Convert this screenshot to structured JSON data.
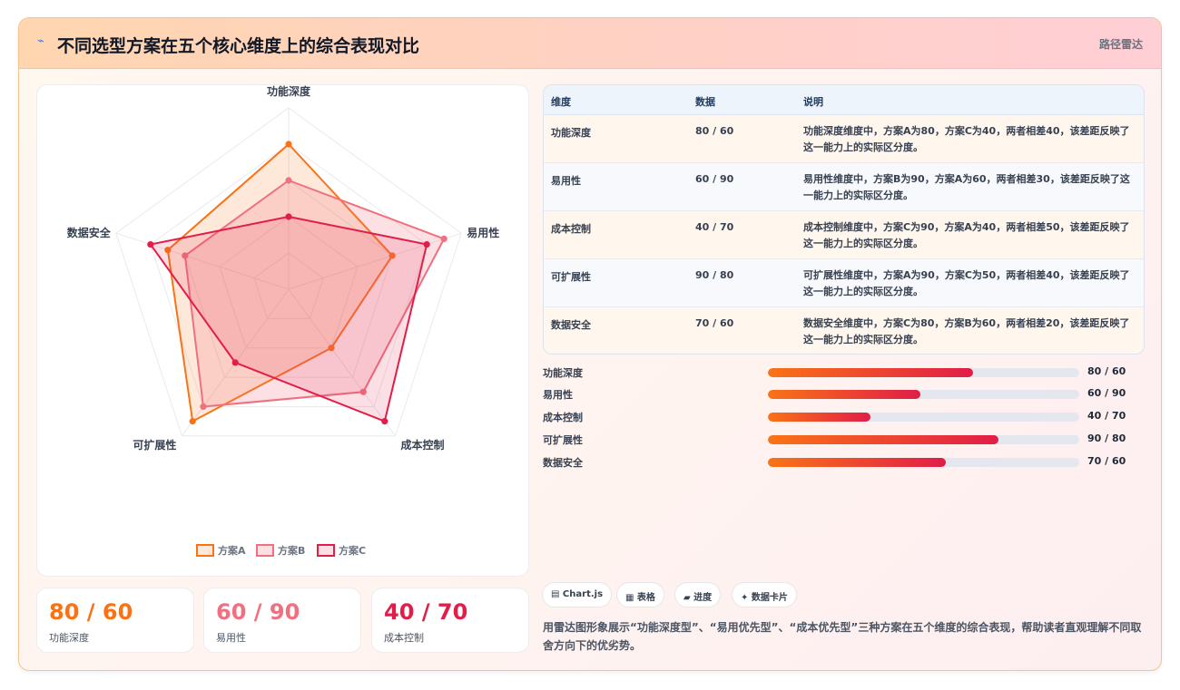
{
  "header": {
    "title": "不同选型方案在五个核心维度上的综合表现对比",
    "tag": "路径雷达"
  },
  "colors": {
    "a": "#f97316",
    "b": "#f0707f",
    "c": "#e11d48",
    "grid": "#e5e7eb"
  },
  "chart_data": {
    "type": "radar",
    "axes": [
      "功能深度",
      "易用性",
      "成本控制",
      "可扩展性",
      "数据安全"
    ],
    "series": [
      {
        "name": "方案A",
        "values": [
          80,
          60,
          40,
          90,
          70
        ]
      },
      {
        "name": "方案B",
        "values": [
          60,
          90,
          70,
          80,
          60
        ]
      },
      {
        "name": "方案C",
        "values": [
          40,
          80,
          90,
          50,
          80
        ]
      }
    ],
    "rmax": 100,
    "legend_position": "bottom"
  },
  "stats": [
    {
      "value": "80 / 60",
      "label": "功能深度"
    },
    {
      "value": "60 / 90",
      "label": "易用性"
    },
    {
      "value": "40 / 70",
      "label": "成本控制"
    }
  ],
  "table": {
    "headers": [
      "维度",
      "数据",
      "说明"
    ],
    "rows": [
      {
        "dim": "功能深度",
        "data": "80 / 60",
        "note": "功能深度维度中，方案A为80，方案C为40，两者相差40，该差距反映了这一能力上的实际区分度。"
      },
      {
        "dim": "易用性",
        "data": "60 / 90",
        "note": "易用性维度中，方案B为90，方案A为60，两者相差30，该差距反映了这一能力上的实际区分度。"
      },
      {
        "dim": "成本控制",
        "data": "40 / 70",
        "note": "成本控制维度中，方案C为90，方案A为40，两者相差50，该差距反映了这一能力上的实际区分度。"
      },
      {
        "dim": "可扩展性",
        "data": "90 / 80",
        "note": "可扩展性维度中，方案A为90，方案C为50，两者相差40，该差距反映了这一能力上的实际区分度。"
      },
      {
        "dim": "数据安全",
        "data": "70 / 60",
        "note": "数据安全维度中，方案C为80，方案B为60，两者相差20，该差距反映了这一能力上的实际区分度。"
      }
    ]
  },
  "bars": [
    {
      "label": "功能深度",
      "value_text": "80 / 60",
      "fraction": 0.66
    },
    {
      "label": "易用性",
      "value_text": "60 / 90",
      "fraction": 0.49
    },
    {
      "label": "成本控制",
      "value_text": "40 / 70",
      "fraction": 0.33
    },
    {
      "label": "可扩展性",
      "value_text": "90 / 80",
      "fraction": 0.74
    },
    {
      "label": "数据安全",
      "value_text": "70 / 60",
      "fraction": 0.57
    }
  ],
  "chips": [
    "▤ Chart.js",
    "▦ 表格",
    "▰ 进度",
    "✦ 数据卡片"
  ],
  "description": "用雷达图形象展示“功能深度型”、“易用优先型”、“成本优先型”三种方案在五个维度的综合表现，帮助读者直观理解不同取舍方向下的优劣势。"
}
